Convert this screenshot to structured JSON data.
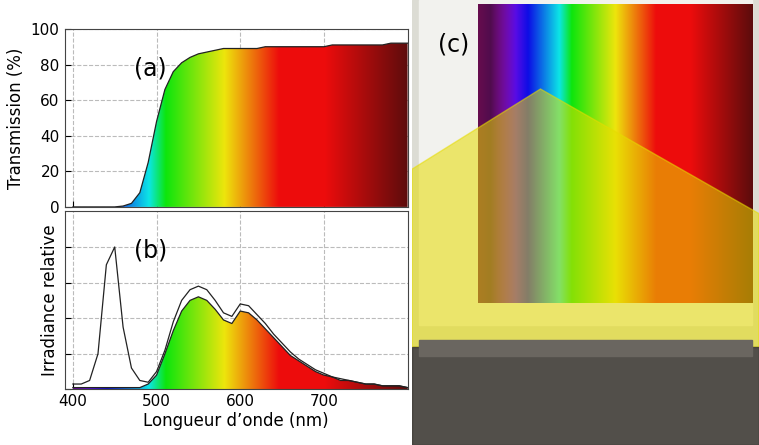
{
  "chart_data": [
    {
      "type": "area",
      "annotation": "(a)",
      "y_label": "Transmission (%)",
      "x": [
        400,
        410,
        420,
        430,
        440,
        450,
        460,
        470,
        480,
        490,
        500,
        510,
        520,
        530,
        540,
        550,
        560,
        570,
        580,
        590,
        600,
        610,
        620,
        630,
        640,
        650,
        660,
        670,
        680,
        690,
        700,
        710,
        720,
        730,
        740,
        750,
        760,
        770,
        780,
        790,
        800
      ],
      "values": [
        0,
        0,
        0,
        0,
        0,
        0,
        0.5,
        2,
        8,
        25,
        48,
        66,
        76,
        81,
        84,
        86,
        87,
        88,
        89,
        89,
        89,
        89,
        89,
        90,
        90,
        90,
        90,
        90,
        90,
        90,
        90,
        91,
        91,
        91,
        91,
        91,
        91,
        91,
        92,
        92,
        92
      ],
      "color": "#222222",
      "xlim": [
        390,
        800
      ],
      "xticks": [
        400,
        500,
        600,
        700
      ],
      "ylim": [
        0,
        100
      ],
      "yticks": [
        0,
        20,
        40,
        60,
        80,
        100
      ],
      "grid": true,
      "tick_labels": "y"
    },
    {
      "type": "line",
      "annotation": "(b)",
      "y_label": "Irradiance relative",
      "x_label": "Longueur d’onde (nm)",
      "x": [
        400,
        410,
        420,
        430,
        440,
        450,
        460,
        470,
        480,
        490,
        500,
        510,
        520,
        530,
        540,
        550,
        560,
        570,
        580,
        590,
        600,
        610,
        620,
        630,
        640,
        650,
        660,
        670,
        680,
        690,
        700,
        710,
        720,
        730,
        740,
        750,
        760,
        770,
        780,
        790,
        800
      ],
      "series": [
        {
          "type": "line",
          "color": "#222222",
          "values": [
            0.03,
            0.03,
            0.05,
            0.2,
            0.7,
            0.8,
            0.35,
            0.12,
            0.05,
            0.04,
            0.1,
            0.22,
            0.38,
            0.5,
            0.56,
            0.58,
            0.56,
            0.5,
            0.43,
            0.41,
            0.48,
            0.47,
            0.42,
            0.37,
            0.31,
            0.26,
            0.21,
            0.17,
            0.14,
            0.11,
            0.09,
            0.07,
            0.06,
            0.05,
            0.04,
            0.03,
            0.03,
            0.02,
            0.02,
            0.02,
            0.01
          ]
        },
        {
          "type": "area",
          "color": "#222222",
          "values": [
            0.01,
            0.01,
            0.01,
            0.01,
            0.01,
            0.01,
            0.01,
            0.01,
            0.01,
            0.03,
            0.08,
            0.2,
            0.33,
            0.44,
            0.5,
            0.52,
            0.5,
            0.45,
            0.39,
            0.37,
            0.44,
            0.43,
            0.39,
            0.34,
            0.29,
            0.24,
            0.19,
            0.16,
            0.13,
            0.1,
            0.08,
            0.07,
            0.05,
            0.05,
            0.04,
            0.03,
            0.03,
            0.02,
            0.02,
            0.02,
            0.01
          ]
        }
      ],
      "xlim": [
        390,
        800
      ],
      "xticks": [
        400,
        500,
        600,
        700
      ],
      "ylim": [
        0,
        1
      ],
      "yticks": [
        0,
        0.2,
        0.4,
        0.6,
        0.8
      ],
      "grid": true,
      "tick_labels": "x"
    }
  ],
  "photo": {
    "annotation": "(c)"
  }
}
